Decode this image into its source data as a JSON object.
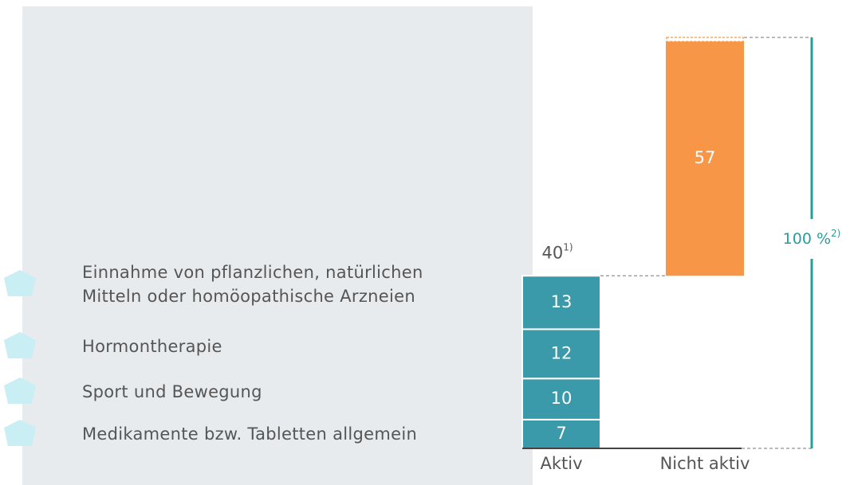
{
  "chart_data": {
    "type": "stacked-bar",
    "categories": [
      "Aktiv",
      "Nicht aktiv"
    ],
    "series": [
      {
        "name": "Medikamente bzw. Tabletten allgemein",
        "color": "#3a9aaa",
        "values": [
          7,
          null
        ]
      },
      {
        "name": "Sport und Bewegung",
        "color": "#3a9aaa",
        "values": [
          10,
          null
        ]
      },
      {
        "name": "Hormontherapie",
        "color": "#3a9aaa",
        "values": [
          12,
          null
        ]
      },
      {
        "name": "Einnahme von pflanzlichen, natürlichen Mitteln oder homöopathische Arzneien",
        "color": "#3a9aaa",
        "values": [
          13,
          null
        ]
      },
      {
        "name": "Nicht aktiv",
        "color": "#f79646",
        "values": [
          null,
          57
        ]
      }
    ],
    "aktiv_total": 40,
    "aktiv_total_note": "1)",
    "total": {
      "value": 100,
      "label": "100 %"
    },
    "total_note": "2)",
    "ylim": [
      0,
      100
    ]
  }
}
